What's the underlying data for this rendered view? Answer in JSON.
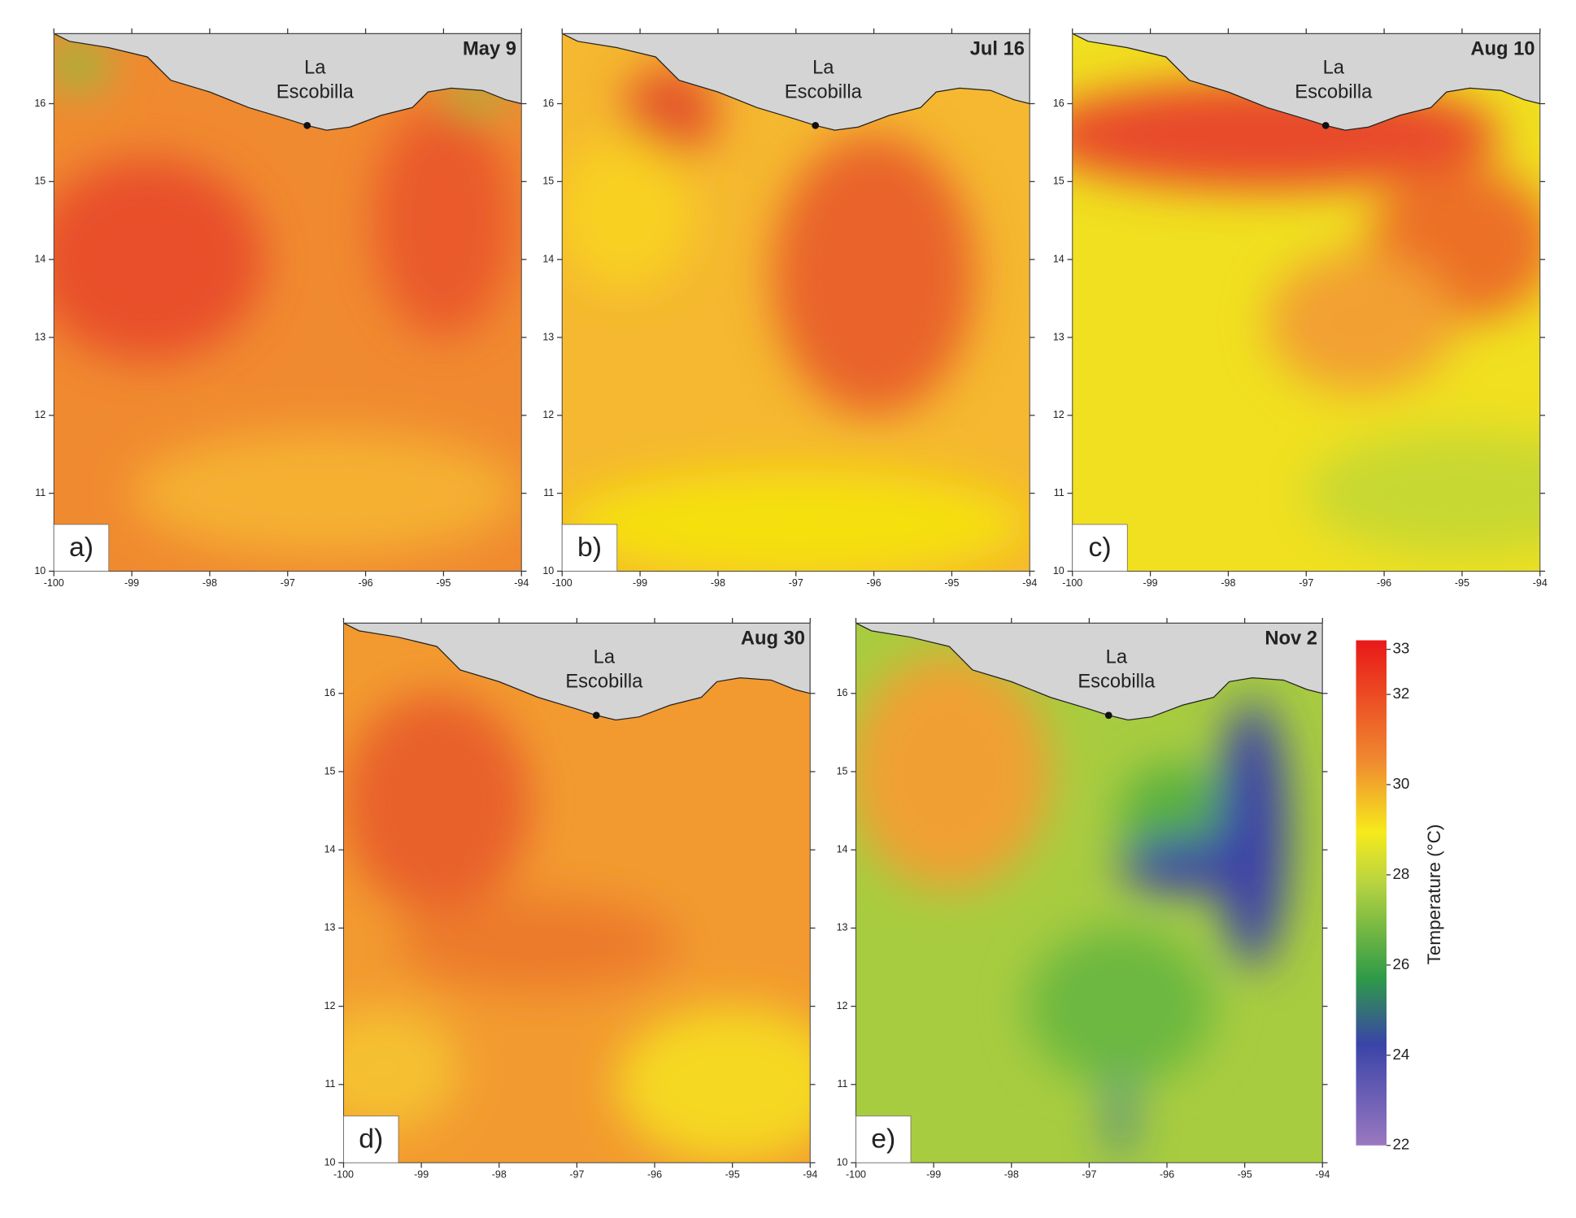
{
  "map": {
    "place": "La Escobilla",
    "xlim": [
      -100,
      -94
    ],
    "ylim": [
      10,
      16.9
    ],
    "xticks": [
      -100,
      -99,
      -98,
      -97,
      -96,
      -95,
      -94
    ],
    "yticks": [
      10,
      11,
      12,
      13,
      14,
      15,
      16
    ]
  },
  "panels": [
    {
      "label": "a)",
      "date": "May 9"
    },
    {
      "label": "b)",
      "date": "Jul 16"
    },
    {
      "label": "c)",
      "date": "Aug 10"
    },
    {
      "label": "d)",
      "date": "Aug 30"
    },
    {
      "label": "e)",
      "date": "Nov 2"
    }
  ],
  "colorbar": {
    "title": "Temperature (°C)",
    "lim": [
      22,
      33.2
    ],
    "ticks": [
      22,
      24,
      26,
      28,
      30,
      32,
      33
    ]
  }
}
